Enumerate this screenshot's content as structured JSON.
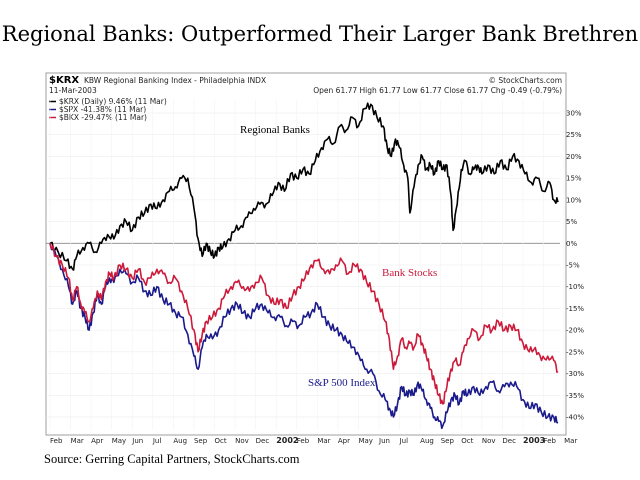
{
  "slide": {
    "title": "Regional Banks: Outperformed Their Larger Bank Brethren",
    "source": "Source: Gerring Capital Partners, StockCharts.com"
  },
  "chart_header": {
    "symbol": "$KRX",
    "description": "KBW Regional Banking Index - Philadelphia  INDX",
    "date": "11-Mar-2003",
    "brand": "© StockCharts.com",
    "ohlc": "Open 61.77  High 61.77  Low 61.77  Close 61.77  Chg -0.49 (-0.79%)"
  },
  "legend": [
    {
      "text": "$KRX (Daily) 9.46% (11 Mar)",
      "color": "#000000"
    },
    {
      "text": "$SPX -41.38% (11 Mar)",
      "color": "#1a1a8c"
    },
    {
      "text": "$BKX -29.47% (11 Mar)",
      "color": "#cc1a3a"
    }
  ],
  "annotations": {
    "regional": "Regional Banks",
    "bank": "Bank Stocks",
    "sp": "S&P 500 Index"
  },
  "chart_data": {
    "type": "line",
    "title": "",
    "xlabel": "",
    "ylabel": "",
    "y_unit": "%",
    "ylim": [
      -43,
      33
    ],
    "yticks": [
      30,
      25,
      20,
      15,
      10,
      5,
      0,
      -5,
      -10,
      -15,
      -20,
      -25,
      -30,
      -35,
      -40
    ],
    "xticks": [
      {
        "label": "Feb",
        "bold": false
      },
      {
        "label": "Mar",
        "bold": false
      },
      {
        "label": "Apr",
        "bold": false
      },
      {
        "label": "May",
        "bold": false
      },
      {
        "label": "Jun",
        "bold": false
      },
      {
        "label": "Jul",
        "bold": false
      },
      {
        "label": "Aug",
        "bold": false
      },
      {
        "label": "Sep",
        "bold": false
      },
      {
        "label": "Oct",
        "bold": false
      },
      {
        "label": "Nov",
        "bold": false
      },
      {
        "label": "Dec",
        "bold": false
      },
      {
        "label": "2002",
        "bold": true
      },
      {
        "label": "Feb",
        "bold": false
      },
      {
        "label": "Mar",
        "bold": false
      },
      {
        "label": "Apr",
        "bold": false
      },
      {
        "label": "May",
        "bold": false
      },
      {
        "label": "Jun",
        "bold": false
      },
      {
        "label": "Jul",
        "bold": false
      },
      {
        "label": "Aug",
        "bold": false
      },
      {
        "label": "Sep",
        "bold": false
      },
      {
        "label": "Oct",
        "bold": false
      },
      {
        "label": "Nov",
        "bold": false
      },
      {
        "label": "Dec",
        "bold": false
      },
      {
        "label": "2003",
        "bold": true
      },
      {
        "label": "Feb",
        "bold": false
      },
      {
        "label": "Mar",
        "bold": false
      }
    ],
    "x_months": [
      0,
      1,
      2,
      3,
      4,
      5,
      6,
      7,
      8,
      9,
      10,
      11,
      12,
      13,
      14,
      15,
      16,
      17,
      18,
      19,
      20,
      21,
      22,
      23,
      24,
      25
    ],
    "series": [
      {
        "name": "$KRX",
        "color": "#000000",
        "points": [
          [
            0,
            0
          ],
          [
            0.4,
            -2
          ],
          [
            0.8,
            -4
          ],
          [
            1.1,
            -6
          ],
          [
            1.3,
            -3
          ],
          [
            1.6,
            -1
          ],
          [
            1.9,
            0
          ],
          [
            2.2,
            -2
          ],
          [
            2.5,
            0
          ],
          [
            2.8,
            2
          ],
          [
            3.1,
            1
          ],
          [
            3.4,
            4
          ],
          [
            3.7,
            5
          ],
          [
            4.0,
            3
          ],
          [
            4.3,
            6
          ],
          [
            4.6,
            7
          ],
          [
            4.9,
            9
          ],
          [
            5.2,
            8
          ],
          [
            5.5,
            10
          ],
          [
            5.8,
            12
          ],
          [
            6.1,
            13
          ],
          [
            6.4,
            15
          ],
          [
            6.7,
            15
          ],
          [
            7.0,
            8
          ],
          [
            7.2,
            1
          ],
          [
            7.4,
            -3
          ],
          [
            7.6,
            0
          ],
          [
            7.8,
            -2
          ],
          [
            8.0,
            -3
          ],
          [
            8.2,
            -1
          ],
          [
            8.4,
            -1
          ],
          [
            8.7,
            1
          ],
          [
            9.0,
            3
          ],
          [
            9.3,
            4
          ],
          [
            9.6,
            6
          ],
          [
            9.9,
            8
          ],
          [
            10.2,
            9
          ],
          [
            10.5,
            9
          ],
          [
            10.8,
            11
          ],
          [
            11.1,
            14
          ],
          [
            11.4,
            12
          ],
          [
            11.7,
            16
          ],
          [
            12.0,
            15
          ],
          [
            12.3,
            17
          ],
          [
            12.6,
            16
          ],
          [
            12.9,
            19
          ],
          [
            13.2,
            22
          ],
          [
            13.5,
            24
          ],
          [
            13.8,
            23
          ],
          [
            14.1,
            27
          ],
          [
            14.4,
            26
          ],
          [
            14.7,
            29
          ],
          [
            15.0,
            27
          ],
          [
            15.3,
            31
          ],
          [
            15.6,
            32
          ],
          [
            15.9,
            29
          ],
          [
            16.2,
            27
          ],
          [
            16.4,
            22
          ],
          [
            16.6,
            20
          ],
          [
            16.8,
            24
          ],
          [
            17.0,
            22
          ],
          [
            17.2,
            18
          ],
          [
            17.4,
            15
          ],
          [
            17.5,
            7
          ],
          [
            17.7,
            13
          ],
          [
            17.9,
            18
          ],
          [
            18.1,
            20
          ],
          [
            18.3,
            17
          ],
          [
            18.5,
            18
          ],
          [
            18.7,
            16
          ],
          [
            18.9,
            19
          ],
          [
            19.1,
            17
          ],
          [
            19.3,
            18
          ],
          [
            19.5,
            11
          ],
          [
            19.6,
            3
          ],
          [
            19.8,
            9
          ],
          [
            20.0,
            17
          ],
          [
            20.2,
            19
          ],
          [
            20.4,
            16
          ],
          [
            20.6,
            17
          ],
          [
            20.8,
            18
          ],
          [
            21.0,
            16
          ],
          [
            21.3,
            18
          ],
          [
            21.6,
            16
          ],
          [
            21.9,
            19
          ],
          [
            22.2,
            17
          ],
          [
            22.5,
            20
          ],
          [
            22.8,
            19
          ],
          [
            23.1,
            16
          ],
          [
            23.4,
            14
          ],
          [
            23.7,
            15
          ],
          [
            24.0,
            12
          ],
          [
            24.3,
            14
          ],
          [
            24.5,
            10
          ],
          [
            24.7,
            9.46
          ]
        ]
      },
      {
        "name": "$SPX",
        "color": "#1a1a8c",
        "points": [
          [
            0,
            0
          ],
          [
            0.3,
            -3
          ],
          [
            0.6,
            -6
          ],
          [
            0.9,
            -10
          ],
          [
            1.1,
            -14
          ],
          [
            1.3,
            -11
          ],
          [
            1.5,
            -15
          ],
          [
            1.7,
            -17
          ],
          [
            1.9,
            -20
          ],
          [
            2.1,
            -16
          ],
          [
            2.3,
            -12
          ],
          [
            2.5,
            -14
          ],
          [
            2.7,
            -10
          ],
          [
            2.9,
            -8
          ],
          [
            3.1,
            -9
          ],
          [
            3.4,
            -6
          ],
          [
            3.7,
            -7
          ],
          [
            4.0,
            -9
          ],
          [
            4.3,
            -8
          ],
          [
            4.6,
            -11
          ],
          [
            4.9,
            -12
          ],
          [
            5.2,
            -10
          ],
          [
            5.5,
            -13
          ],
          [
            5.8,
            -14
          ],
          [
            6.1,
            -16
          ],
          [
            6.4,
            -17
          ],
          [
            6.7,
            -21
          ],
          [
            7.0,
            -26
          ],
          [
            7.2,
            -29
          ],
          [
            7.4,
            -24
          ],
          [
            7.6,
            -21
          ],
          [
            7.9,
            -22
          ],
          [
            8.2,
            -20
          ],
          [
            8.5,
            -17
          ],
          [
            8.8,
            -15
          ],
          [
            9.1,
            -14
          ],
          [
            9.4,
            -16
          ],
          [
            9.7,
            -17
          ],
          [
            10.0,
            -15
          ],
          [
            10.3,
            -14
          ],
          [
            10.6,
            -16
          ],
          [
            10.9,
            -17
          ],
          [
            11.2,
            -17
          ],
          [
            11.5,
            -19
          ],
          [
            11.8,
            -18
          ],
          [
            12.1,
            -19
          ],
          [
            12.4,
            -17
          ],
          [
            12.7,
            -16
          ],
          [
            13.0,
            -14
          ],
          [
            13.3,
            -17
          ],
          [
            13.6,
            -19
          ],
          [
            13.9,
            -20
          ],
          [
            14.2,
            -21
          ],
          [
            14.5,
            -23
          ],
          [
            14.8,
            -24
          ],
          [
            15.1,
            -27
          ],
          [
            15.4,
            -29
          ],
          [
            15.7,
            -30
          ],
          [
            16.0,
            -34
          ],
          [
            16.3,
            -36
          ],
          [
            16.5,
            -38
          ],
          [
            16.7,
            -40
          ],
          [
            16.9,
            -37
          ],
          [
            17.1,
            -33
          ],
          [
            17.3,
            -35
          ],
          [
            17.5,
            -34
          ],
          [
            17.7,
            -35
          ],
          [
            17.9,
            -32
          ],
          [
            18.1,
            -34
          ],
          [
            18.3,
            -36
          ],
          [
            18.5,
            -38
          ],
          [
            18.7,
            -40
          ],
          [
            18.9,
            -41
          ],
          [
            19.1,
            -42
          ],
          [
            19.3,
            -39
          ],
          [
            19.5,
            -36
          ],
          [
            19.7,
            -35
          ],
          [
            19.9,
            -37
          ],
          [
            20.1,
            -34
          ],
          [
            20.3,
            -35
          ],
          [
            20.6,
            -33
          ],
          [
            20.9,
            -35
          ],
          [
            21.2,
            -33
          ],
          [
            21.5,
            -32
          ],
          [
            21.8,
            -34
          ],
          [
            22.1,
            -33
          ],
          [
            22.4,
            -32
          ],
          [
            22.7,
            -33
          ],
          [
            23.0,
            -36
          ],
          [
            23.3,
            -38
          ],
          [
            23.6,
            -37
          ],
          [
            23.9,
            -39
          ],
          [
            24.2,
            -40
          ],
          [
            24.5,
            -40
          ],
          [
            24.7,
            -41.38
          ]
        ]
      },
      {
        "name": "$BKX",
        "color": "#cc1a3a",
        "points": [
          [
            0,
            0
          ],
          [
            0.3,
            -3
          ],
          [
            0.6,
            -5
          ],
          [
            0.9,
            -8
          ],
          [
            1.1,
            -13
          ],
          [
            1.3,
            -10
          ],
          [
            1.5,
            -14
          ],
          [
            1.7,
            -16
          ],
          [
            1.9,
            -18
          ],
          [
            2.1,
            -15
          ],
          [
            2.3,
            -11
          ],
          [
            2.5,
            -13
          ],
          [
            2.7,
            -9
          ],
          [
            2.9,
            -7
          ],
          [
            3.1,
            -8
          ],
          [
            3.4,
            -5
          ],
          [
            3.7,
            -6
          ],
          [
            4.0,
            -8
          ],
          [
            4.3,
            -6
          ],
          [
            4.6,
            -9
          ],
          [
            4.9,
            -8
          ],
          [
            5.2,
            -6
          ],
          [
            5.5,
            -7
          ],
          [
            5.8,
            -9
          ],
          [
            6.1,
            -8
          ],
          [
            6.4,
            -11
          ],
          [
            6.7,
            -15
          ],
          [
            7.0,
            -20
          ],
          [
            7.2,
            -25
          ],
          [
            7.4,
            -21
          ],
          [
            7.6,
            -18
          ],
          [
            7.9,
            -17
          ],
          [
            8.2,
            -15
          ],
          [
            8.5,
            -12
          ],
          [
            8.8,
            -10
          ],
          [
            9.1,
            -9
          ],
          [
            9.4,
            -10
          ],
          [
            9.7,
            -11
          ],
          [
            10.0,
            -9
          ],
          [
            10.3,
            -8
          ],
          [
            10.6,
            -12
          ],
          [
            10.9,
            -14
          ],
          [
            11.2,
            -13
          ],
          [
            11.5,
            -15
          ],
          [
            11.8,
            -12
          ],
          [
            12.1,
            -10
          ],
          [
            12.4,
            -8
          ],
          [
            12.7,
            -5
          ],
          [
            13.0,
            -4
          ],
          [
            13.3,
            -6
          ],
          [
            13.6,
            -7
          ],
          [
            13.9,
            -5
          ],
          [
            14.2,
            -4
          ],
          [
            14.5,
            -7
          ],
          [
            14.8,
            -5
          ],
          [
            15.1,
            -6
          ],
          [
            15.4,
            -9
          ],
          [
            15.7,
            -11
          ],
          [
            16.0,
            -14
          ],
          [
            16.3,
            -18
          ],
          [
            16.5,
            -22
          ],
          [
            16.7,
            -29
          ],
          [
            16.9,
            -26
          ],
          [
            17.1,
            -22
          ],
          [
            17.3,
            -24
          ],
          [
            17.5,
            -23
          ],
          [
            17.7,
            -24
          ],
          [
            17.9,
            -21
          ],
          [
            18.1,
            -23
          ],
          [
            18.3,
            -26
          ],
          [
            18.5,
            -29
          ],
          [
            18.7,
            -32
          ],
          [
            18.9,
            -35
          ],
          [
            19.1,
            -37
          ],
          [
            19.3,
            -33
          ],
          [
            19.5,
            -29
          ],
          [
            19.7,
            -27
          ],
          [
            19.9,
            -28
          ],
          [
            20.1,
            -25
          ],
          [
            20.3,
            -22
          ],
          [
            20.6,
            -20
          ],
          [
            20.9,
            -22
          ],
          [
            21.2,
            -19
          ],
          [
            21.5,
            -20
          ],
          [
            21.8,
            -18
          ],
          [
            22.1,
            -20
          ],
          [
            22.4,
            -19
          ],
          [
            22.7,
            -20
          ],
          [
            23.0,
            -23
          ],
          [
            23.3,
            -25
          ],
          [
            23.6,
            -24
          ],
          [
            23.9,
            -27
          ],
          [
            24.2,
            -26
          ],
          [
            24.5,
            -27
          ],
          [
            24.7,
            -29.47
          ]
        ]
      }
    ]
  }
}
